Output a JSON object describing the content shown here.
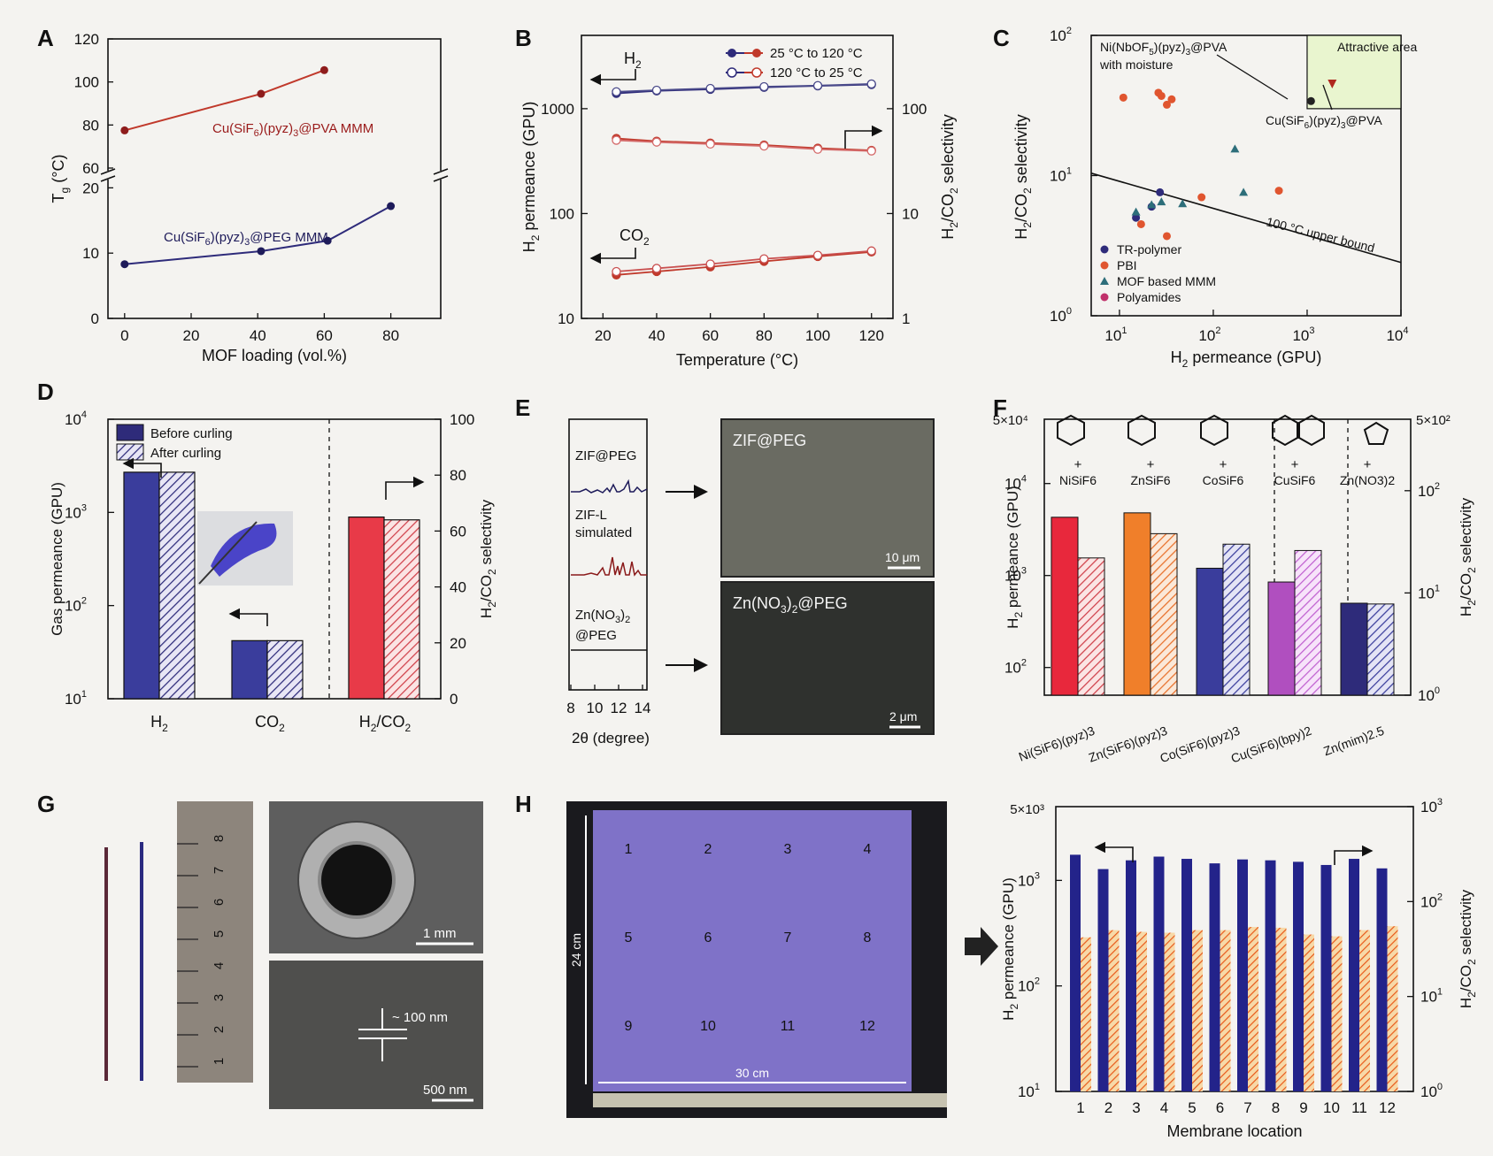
{
  "panel_letters": {
    "A": "A",
    "B": "B",
    "C": "C",
    "D": "D",
    "E": "E",
    "F": "F",
    "G": "G",
    "H": "H"
  },
  "colors": {
    "navy": "#2e2b7a",
    "red": "#c0392b",
    "orange": "#e8702a",
    "purple": "#b04fbf",
    "blue": "#3a3d9c",
    "pink": "#f08080",
    "attractive": "#e9f5cf"
  },
  "chart_data": [
    {
      "id": "A",
      "type": "line",
      "xlabel": "MOF loading (vol.%)",
      "ylabel": "Tg (°C)",
      "ylabel_main": "T",
      "ylabel_sub": "g",
      "ylabel_rest": " (°C)",
      "xticks": [
        "0",
        "20",
        "40",
        "60",
        "80"
      ],
      "yticks_upper": [
        "60",
        "80",
        "100",
        "120"
      ],
      "yticks_lower": [
        "0",
        "10",
        "20"
      ],
      "xlim": [
        -5,
        95
      ],
      "upper_ylim": [
        60,
        120
      ],
      "lower_ylim": [
        0,
        21
      ],
      "series": [
        {
          "name": "Cu(SiF6)(pyz)3@PVA MMM",
          "label_parts": [
            "Cu(SiF",
            "6",
            ")(pyz)",
            "3",
            "@PVA MMM"
          ],
          "x": [
            0,
            41,
            60
          ],
          "y": [
            77.5,
            94.5,
            105.5
          ]
        },
        {
          "name": "Cu(SiF6)(pyz)3@PEG MMM",
          "label_parts": [
            "Cu(SiF",
            "6",
            ")(pyz)",
            "3",
            "@PEG MMM"
          ],
          "x": [
            0,
            41,
            61,
            80
          ],
          "y": [
            8.3,
            10.3,
            11.9,
            17.2
          ]
        }
      ]
    },
    {
      "id": "B",
      "type": "line",
      "xlabel": "Temperature (°C)",
      "ylabel_left": "H2 permeance (GPU)",
      "ylabel_right": "H2/CO2 selectivity",
      "xticks": [
        "20",
        "40",
        "60",
        "80",
        "100",
        "120"
      ],
      "left_yticks": [
        "10",
        "100",
        "1000"
      ],
      "right_yticks": [
        "1",
        "10",
        "100"
      ],
      "xlim": [
        12,
        128
      ],
      "left_ylim_log": [
        10,
        5000
      ],
      "right_ylim_log": [
        1,
        500
      ],
      "legend": [
        "25 °C to 120 °C",
        "120 °C to 25 °C"
      ],
      "annotations": [
        "H2",
        "CO2"
      ],
      "x": [
        25,
        40,
        60,
        80,
        100,
        120
      ],
      "series": [
        {
          "name": "H2 permeance, 25 °C to 120 °C",
          "axis": "left",
          "values": [
            1400,
            1480,
            1530,
            1600,
            1650,
            1700
          ]
        },
        {
          "name": "H2 permeance, 120 °C to 25 °C",
          "axis": "left",
          "values": [
            1450,
            1500,
            1560,
            1620,
            1660,
            1720
          ]
        },
        {
          "name": "H2/CO2 selectivity, 25 °C to 120 °C",
          "axis": "right",
          "values": [
            52,
            49,
            47,
            45,
            42,
            40
          ]
        },
        {
          "name": "H2/CO2 selectivity, 120 °C to 25 °C",
          "axis": "right",
          "values": [
            50,
            48,
            46,
            44,
            41,
            39.5
          ]
        },
        {
          "name": "CO2 permeance, 25 °C to 120 °C",
          "axis": "left",
          "values": [
            26,
            28,
            31,
            35,
            39,
            43
          ]
        },
        {
          "name": "CO2 permeance, 120 °C to 25 °C",
          "axis": "left",
          "values": [
            28,
            30,
            33,
            37,
            40,
            44
          ]
        }
      ]
    },
    {
      "id": "C",
      "type": "scatter",
      "xlabel": "H2 permeance (GPU)",
      "ylabel": "H2/CO2 selectivity",
      "xlim_log": [
        5,
        10000
      ],
      "ylim_log": [
        1,
        100
      ],
      "xticks": [
        "10",
        "100",
        "1000",
        "10000"
      ],
      "yticks": [
        "1",
        "10",
        "100"
      ],
      "legend": [
        "TR-polymer",
        "PBI",
        "MOF based MMM",
        "Polyamides"
      ],
      "upper_bound_label": "100 °C upper bound",
      "upper_bound_line": {
        "x": [
          5,
          10000
        ],
        "y": [
          10.4,
          2.4
        ]
      },
      "attractive_area": {
        "label": "Attractive area",
        "x": [
          1000,
          10000
        ],
        "y": [
          30,
          100
        ]
      },
      "annotations": [
        "Ni(NbOF5)(pyz)3@PVA",
        "with moisture",
        "Cu(SiF6)(pyz)3@PVA"
      ],
      "series": [
        {
          "name": "TR-polymer",
          "x": [
            15,
            22,
            27
          ],
          "y": [
            5.0,
            6.0,
            7.6
          ]
        },
        {
          "name": "PBI",
          "x": [
            11,
            17,
            26,
            28,
            32,
            36,
            32,
            75,
            500
          ],
          "y": [
            36,
            4.5,
            39,
            37,
            32,
            35,
            3.7,
            7.0,
            7.8
          ]
        },
        {
          "name": "MOF based MMM",
          "x": [
            15,
            22,
            28,
            47,
            170,
            210
          ],
          "y": [
            5.5,
            6.2,
            6.5,
            6.3,
            15.5,
            7.6
          ]
        },
        {
          "name": "Polyamides",
          "x": [],
          "y": []
        },
        {
          "name": "Ni(NbOF5)(pyz)3@PVA with moisture",
          "x": [
            1100
          ],
          "y": [
            34
          ]
        },
        {
          "name": "Cu(SiF6)(pyz)3@PVA",
          "x": [
            1850
          ],
          "y": [
            45
          ]
        }
      ]
    },
    {
      "id": "D",
      "type": "bar",
      "categories": [
        "H2",
        "CO2",
        "H2/CO2"
      ],
      "ylabel_left": "Gas permeance (GPU)",
      "ylabel_right": "H2/CO2 selectivity",
      "left_ylim_log": [
        10,
        10000
      ],
      "right_ylim": [
        0,
        100
      ],
      "left_yticks": [
        "10",
        "100",
        "1000",
        "10000"
      ],
      "right_yticks": [
        "0",
        "20",
        "40",
        "60",
        "80",
        "100"
      ],
      "legend": [
        "Before curling",
        "After curling"
      ],
      "series": [
        {
          "name": "Before curling",
          "values": [
            2700,
            42,
            65
          ]
        },
        {
          "name": "After curling",
          "values": [
            2700,
            42,
            64
          ]
        }
      ]
    },
    {
      "id": "E",
      "type": "line",
      "xlabel": "2θ (degree)",
      "xticks": [
        "8",
        "10",
        "12",
        "14"
      ],
      "labels": [
        "ZIF@PEG",
        "ZIF-L",
        "simulated",
        "Zn(NO3)2",
        "@PEG"
      ],
      "micrographs": [
        {
          "title": "ZIF@PEG",
          "scale": "10 μm"
        },
        {
          "title": "Zn(NO3)2@PEG",
          "scale": "2 μm"
        }
      ]
    },
    {
      "id": "F",
      "type": "bar",
      "categories": [
        "Ni(SiF6)(pyz)3",
        "Zn(SiF6)(pyz)3",
        "Co(SiF6)(pyz)3",
        "Cu(SiF6)(bpy)2",
        "Zn(mim)2.5"
      ],
      "ylabel_left": "H2 permeance (GPU)",
      "ylabel_right": "H2/CO2 selectivity",
      "left_ylim_log": [
        50,
        50000
      ],
      "right_ylim_log": [
        1,
        500
      ],
      "left_yticks": [
        "100",
        "1000",
        "10000",
        "5×10⁴"
      ],
      "right_yticks": [
        "1",
        "10",
        "100",
        "5×10²"
      ],
      "salts": [
        "NiSiF6",
        "ZnSiF6",
        "CoSiF6",
        "CuSiF6",
        "Zn(NO3)2"
      ],
      "plus": "+",
      "series": [
        {
          "name": "H2 permeance",
          "axis": "left",
          "values": [
            4300,
            4800,
            1200,
            850,
            500
          ]
        },
        {
          "name": "H2/CO2 selectivity",
          "axis": "right",
          "values": [
            22,
            38,
            30,
            26,
            7.8
          ]
        }
      ]
    },
    {
      "id": "G",
      "type": "table",
      "scale_labels": [
        "1 mm",
        "~ 100 nm",
        "500 nm"
      ],
      "ruler_numbers": [
        "1",
        "2",
        "3",
        "4",
        "5",
        "6",
        "7",
        "8"
      ]
    },
    {
      "id": "H",
      "type": "bar",
      "sheet_numbers": [
        "1",
        "2",
        "3",
        "4",
        "5",
        "6",
        "7",
        "8",
        "9",
        "10",
        "11",
        "12"
      ],
      "sheet_height": "24 cm",
      "sheet_width": "30 cm",
      "xlabel": "Membrane location",
      "ylabel_left": "H2 permeance (GPU)",
      "ylabel_right": "H2/CO2 selectivity",
      "left_ylim_log": [
        10,
        5000
      ],
      "right_ylim_log": [
        1,
        1000
      ],
      "left_yticks": [
        "10",
        "100",
        "1000",
        "5×10³"
      ],
      "right_yticks": [
        "1",
        "10",
        "100",
        "1000"
      ],
      "categories": [
        "1",
        "2",
        "3",
        "4",
        "5",
        "6",
        "7",
        "8",
        "9",
        "10",
        "11",
        "12"
      ],
      "series": [
        {
          "name": "H2 permeance",
          "axis": "left",
          "values": [
            1750,
            1280,
            1550,
            1680,
            1600,
            1450,
            1580,
            1550,
            1500,
            1400,
            1600,
            1300
          ]
        },
        {
          "name": "H2/CO2 selectivity",
          "axis": "right",
          "values": [
            42,
            50,
            48,
            47,
            50,
            50,
            54,
            53,
            45,
            43,
            50,
            55
          ]
        }
      ]
    }
  ]
}
